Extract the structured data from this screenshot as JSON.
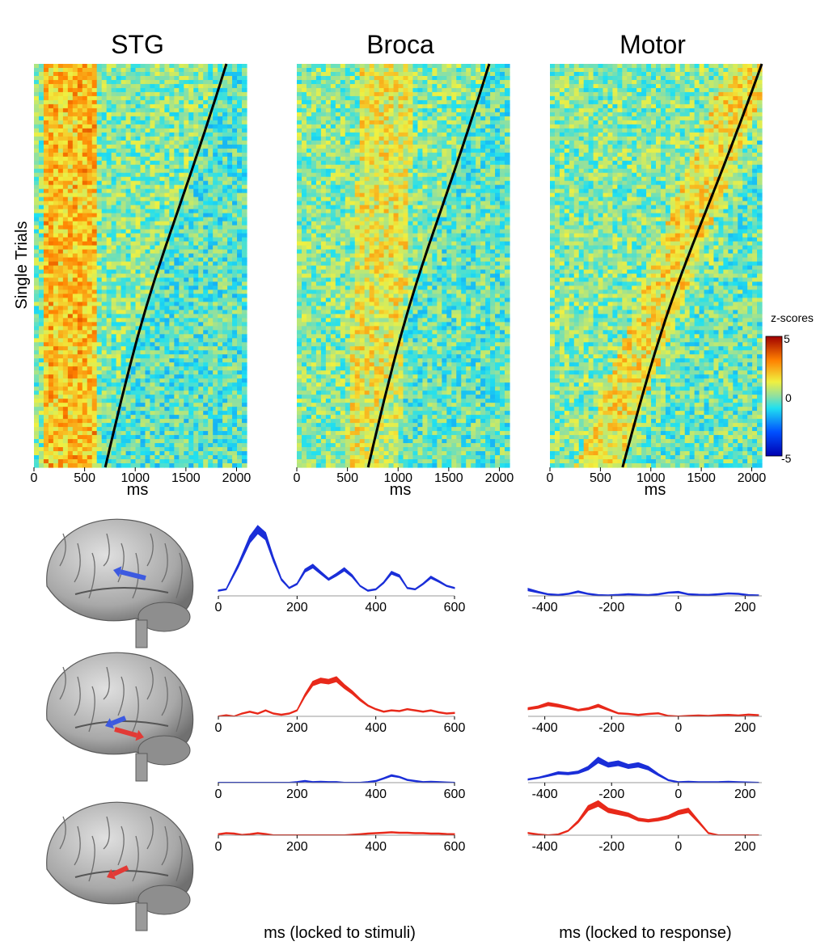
{
  "chart_data": [
    {
      "type": "heatmap",
      "title": "STG",
      "xlabel": "ms",
      "ylabel": "Single Trials",
      "xticks": [
        "0",
        "500",
        "1000",
        "1500",
        "2000"
      ],
      "xlim": [
        0,
        2100
      ],
      "peak_window_ms": [
        100,
        600
      ],
      "response_curve_ms": {
        "start": 600,
        "end": 1900
      }
    },
    {
      "type": "heatmap",
      "title": "Broca",
      "xlabel": "ms",
      "ylabel": "",
      "xticks": [
        "0",
        "500",
        "1000",
        "1500",
        "2000"
      ],
      "xlim": [
        0,
        2100
      ],
      "peak_window_ms": [
        400,
        900
      ],
      "response_curve_ms": {
        "start": 600,
        "end": 1900
      }
    },
    {
      "type": "heatmap",
      "title": "Motor",
      "xlabel": "ms",
      "ylabel": "",
      "xticks": [
        "0",
        "500",
        "1000",
        "1500",
        "2000"
      ],
      "xlim": [
        0,
        2100
      ],
      "peak_window_ms": [
        500,
        1400
      ],
      "response_curve_ms": {
        "start": 600,
        "end": 2100
      }
    },
    {
      "type": "area",
      "xlabel": "ms (locked to stimuli)",
      "xticks": [
        "0",
        "200",
        "400",
        "600"
      ],
      "xlim": [
        0,
        600
      ],
      "series": [
        {
          "color": "#1a2ed8",
          "x": [
            0,
            20,
            50,
            80,
            100,
            120,
            140,
            160,
            180,
            200,
            220,
            240,
            260,
            280,
            300,
            320,
            340,
            360,
            380,
            400,
            420,
            440,
            460,
            480,
            500,
            520,
            540,
            560,
            580,
            600
          ],
          "values": [
            0.08,
            0.1,
            0.45,
            0.85,
            1.0,
            0.9,
            0.55,
            0.25,
            0.12,
            0.18,
            0.38,
            0.45,
            0.35,
            0.25,
            0.32,
            0.4,
            0.3,
            0.15,
            0.08,
            0.1,
            0.2,
            0.35,
            0.3,
            0.12,
            0.1,
            0.18,
            0.28,
            0.22,
            0.15,
            0.12
          ]
        },
        {
          "color": "#e8291a",
          "x": [
            0,
            20,
            40,
            60,
            80,
            100,
            120,
            140,
            160,
            180,
            200,
            220,
            240,
            260,
            280,
            300,
            320,
            340,
            360,
            380,
            400,
            420,
            440,
            460,
            480,
            500,
            520,
            540,
            560,
            580,
            600
          ],
          "values": [
            0,
            0.02,
            0,
            0.05,
            0.08,
            0.05,
            0.1,
            0.05,
            0.03,
            0.05,
            0.1,
            0.35,
            0.55,
            0.6,
            0.58,
            0.62,
            0.5,
            0.4,
            0.28,
            0.18,
            0.12,
            0.08,
            0.1,
            0.09,
            0.12,
            0.1,
            0.08,
            0.1,
            0.07,
            0.05,
            0.06
          ]
        },
        {
          "color": "#1a2ed8",
          "x": [
            0,
            20,
            40,
            60,
            80,
            100,
            120,
            140,
            160,
            180,
            200,
            220,
            240,
            260,
            280,
            300,
            320,
            340,
            360,
            380,
            400,
            420,
            440,
            460,
            480,
            500,
            520,
            540,
            560,
            580,
            600
          ],
          "values": [
            0,
            0,
            0,
            0,
            0,
            0,
            0,
            0,
            0,
            0,
            0.02,
            0.05,
            0.02,
            0.03,
            0.02,
            0.02,
            0,
            0,
            0,
            0.02,
            0.05,
            0.12,
            0.2,
            0.16,
            0.08,
            0.05,
            0.02,
            0.03,
            0.02,
            0.01,
            0
          ]
        },
        {
          "color": "#e8291a",
          "x": [
            0,
            20,
            40,
            60,
            80,
            100,
            120,
            140,
            160,
            180,
            200,
            220,
            240,
            260,
            280,
            300,
            320,
            340,
            360,
            380,
            400,
            420,
            440,
            460,
            480,
            500,
            520,
            540,
            560,
            580,
            600
          ],
          "values": [
            0.05,
            0.1,
            0.08,
            0.02,
            0.05,
            0.1,
            0.06,
            0,
            0,
            0,
            0,
            0,
            0,
            0,
            0,
            0,
            0,
            0.03,
            0.05,
            0.08,
            0.1,
            0.12,
            0.14,
            0.12,
            0.12,
            0.1,
            0.1,
            0.08,
            0.08,
            0.06,
            0.05
          ]
        }
      ]
    },
    {
      "type": "area",
      "xlabel": "ms (locked to response)",
      "xticks": [
        "-400",
        "-200",
        "0",
        "200"
      ],
      "xlim": [
        -450,
        250
      ],
      "series": [
        {
          "color": "#1a2ed8",
          "x": [
            -450,
            -420,
            -390,
            -360,
            -330,
            -300,
            -270,
            -240,
            -210,
            -180,
            -150,
            -120,
            -90,
            -60,
            -30,
            0,
            30,
            60,
            90,
            120,
            150,
            180,
            210,
            240
          ],
          "values": [
            0.3,
            0.18,
            0.08,
            0.05,
            0.1,
            0.2,
            0.1,
            0.04,
            0.03,
            0.05,
            0.08,
            0.06,
            0.04,
            0.08,
            0.15,
            0.18,
            0.08,
            0.06,
            0.05,
            0.08,
            0.12,
            0.1,
            0.04,
            0.03
          ]
        },
        {
          "color": "#e8291a",
          "x": [
            -450,
            -420,
            -390,
            -360,
            -330,
            -300,
            -270,
            -240,
            -210,
            -180,
            -150,
            -120,
            -90,
            -60,
            -30,
            0,
            30,
            60,
            90,
            120,
            150,
            180,
            210,
            240
          ],
          "values": [
            0.25,
            0.3,
            0.4,
            0.35,
            0.28,
            0.2,
            0.25,
            0.35,
            0.22,
            0.1,
            0.08,
            0.05,
            0.08,
            0.1,
            0.02,
            0,
            0.02,
            0.03,
            0.02,
            0.04,
            0.05,
            0.03,
            0.06,
            0.04
          ]
        },
        {
          "color": "#1a2ed8",
          "x": [
            -450,
            -420,
            -390,
            -360,
            -330,
            -300,
            -270,
            -240,
            -210,
            -180,
            -150,
            -120,
            -90,
            -60,
            -30,
            0,
            30,
            60,
            90,
            120,
            150,
            180,
            210,
            240
          ],
          "values": [
            0.1,
            0.15,
            0.22,
            0.3,
            0.28,
            0.32,
            0.45,
            0.7,
            0.55,
            0.6,
            0.5,
            0.55,
            0.45,
            0.25,
            0.08,
            0.02,
            0.03,
            0.02,
            0.02,
            0.02,
            0.03,
            0.02,
            0.01,
            0
          ]
        },
        {
          "color": "#e8291a",
          "x": [
            -450,
            -420,
            -390,
            -360,
            -330,
            -300,
            -270,
            -240,
            -210,
            -180,
            -150,
            -120,
            -90,
            -60,
            -30,
            0,
            30,
            60,
            90,
            120,
            150,
            180,
            210,
            240
          ],
          "values": [
            0.05,
            0.02,
            0,
            0.02,
            0.1,
            0.3,
            0.6,
            0.7,
            0.55,
            0.5,
            0.45,
            0.35,
            0.32,
            0.35,
            0.4,
            0.5,
            0.55,
            0.3,
            0.05,
            0,
            0,
            0,
            0,
            0
          ]
        }
      ]
    }
  ],
  "colorbar": {
    "title": "z-scores",
    "ticks": [
      "5",
      "0",
      "-5"
    ],
    "range": [
      -5,
      5
    ]
  },
  "brain_markers": [
    {
      "arrows": [
        {
          "color": "#3d5ae0"
        }
      ]
    },
    {
      "arrows": [
        {
          "color": "#3d5ae0"
        },
        {
          "color": "#e23a36"
        }
      ]
    },
    {
      "arrows": [
        {
          "color": "#e23a36"
        }
      ]
    }
  ]
}
